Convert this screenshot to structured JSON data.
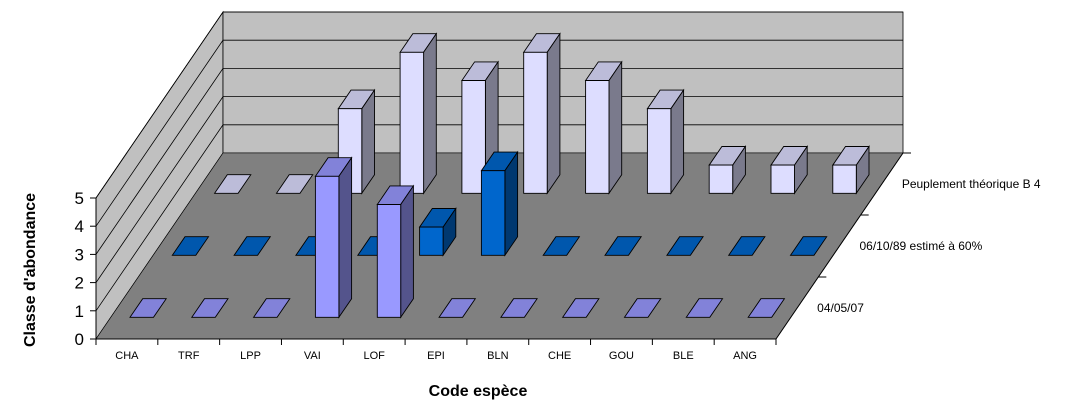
{
  "chart_data": {
    "type": "bar",
    "subtype": "3d-clustered-depth",
    "xlabel": "Code espèce",
    "ylabel": "Classe d'abondance",
    "ylim": [
      0,
      5
    ],
    "yticks": [
      "0",
      "1",
      "2",
      "3",
      "4",
      "5"
    ],
    "categories": [
      "CHA",
      "TRF",
      "LPP",
      "VAI",
      "LOF",
      "EPI",
      "BLN",
      "CHE",
      "GOU",
      "BLE",
      "ANG"
    ],
    "series": [
      {
        "name": "04/05/07",
        "color": "#9999ff",
        "values": [
          0,
          0,
          0,
          5,
          4,
          0,
          0,
          0,
          0,
          0,
          0
        ]
      },
      {
        "name": "06/10/89 estimé à 60%",
        "color": "#0066cc",
        "values": [
          0,
          0,
          0,
          0,
          1,
          3,
          0,
          0,
          0,
          0,
          0
        ]
      },
      {
        "name": "Peuplement théorique B 4",
        "color": "#ddddff",
        "values": [
          0,
          0,
          3,
          5,
          4,
          5,
          4,
          3,
          1,
          1,
          1
        ]
      }
    ],
    "grid": true,
    "wall_color": "#c0c0c0",
    "floor_color": "#808080"
  }
}
